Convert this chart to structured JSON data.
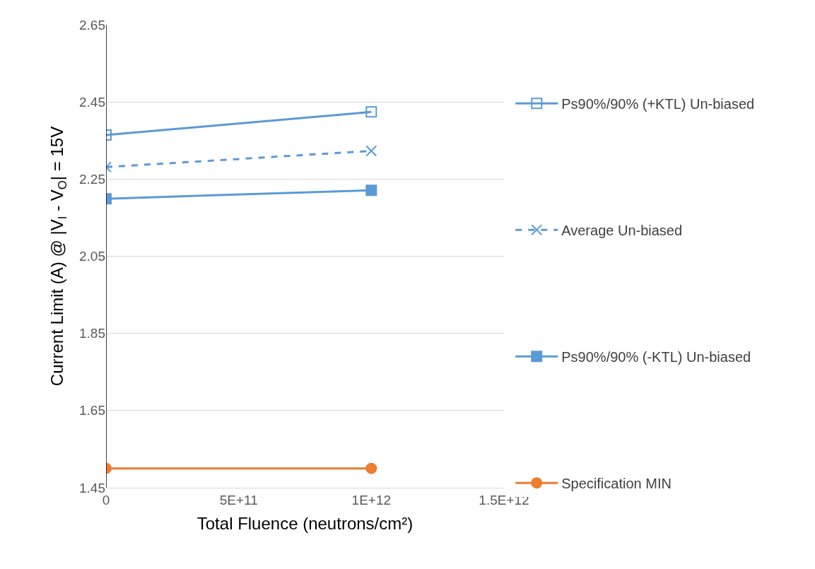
{
  "chart_data": {
    "type": "line",
    "xlabel": "Total Fluence (neutrons/cm²)",
    "ylabel": "Current Limit (A) @ |V$_{I}$ - V$_{O}$| = 15V",
    "x": [
      0,
      1000000000000
    ],
    "series": [
      {
        "name": "Ps90%/90% (+KTL) Un-biased",
        "color": "#5b9bd5",
        "values": [
          2.364,
          2.424
        ],
        "marker": "square-open",
        "line_style": "solid"
      },
      {
        "name": "Average Un-biased",
        "color": "#5b9bd5",
        "values": [
          2.281,
          2.323
        ],
        "marker": "cross",
        "line_style": "dashed"
      },
      {
        "name": "Ps90%/90% (-KTL) Un-biased",
        "color": "#5b9bd5",
        "values": [
          2.199,
          2.221
        ],
        "marker": "square",
        "line_style": "solid"
      },
      {
        "name": "Specification MIN",
        "color": "#ed7d31",
        "values": [
          1.5,
          1.5
        ],
        "marker": "circle",
        "line_style": "solid"
      }
    ],
    "xlim": [
      0,
      1500000000000
    ],
    "xticks": [
      0,
      {
        "value": 500000000000,
        "label": "5E+11"
      },
      {
        "value": 1000000000000,
        "label": "1E+12"
      },
      {
        "value": 1500000000000,
        "label": "1.5E+12"
      }
    ],
    "ylim": [
      1.45,
      2.65
    ],
    "yticks": [
      1.45,
      1.65,
      1.85,
      2.05,
      2.25,
      2.45,
      2.65
    ],
    "grid": "y",
    "legend": "right"
  }
}
